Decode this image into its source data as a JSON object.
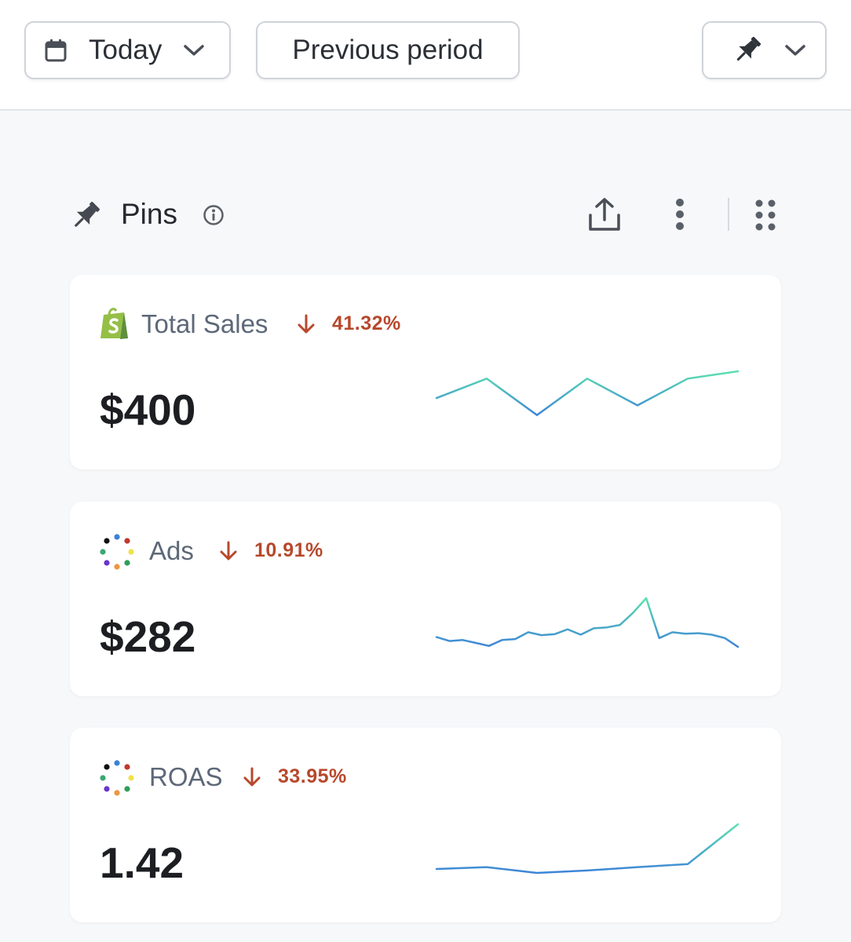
{
  "toolbar": {
    "date_range_label": "Today",
    "compare_label": "Previous period"
  },
  "section": {
    "title": "Pins"
  },
  "colors": {
    "negative_change": "#b7482c",
    "sparkline_start": "#3d84d8",
    "sparkline_end": "#5de0b0",
    "shopify_green": "#95bf47"
  },
  "icons": {
    "date": "calendar-icon",
    "dropdown": "chevron-down-icon",
    "pin": "pin-icon",
    "info": "info-icon",
    "share": "share-icon",
    "more": "more-vertical-icon",
    "drag": "drag-handle-icon",
    "change_down": "arrow-down-icon"
  },
  "cards": [
    {
      "name": "Total Sales",
      "source_logo": "shopify-logo",
      "change": "41.32%",
      "change_direction": "down",
      "value": "$400",
      "sparkline": [
        0.45,
        0.85,
        0.1,
        0.85,
        0.3,
        0.85,
        1.0
      ]
    },
    {
      "name": "Ads",
      "source_logo": "multicolor-dots-logo",
      "change": "10.91%",
      "change_direction": "down",
      "value": "$282",
      "sparkline": [
        0.2,
        0.12,
        0.14,
        0.08,
        0.02,
        0.14,
        0.16,
        0.3,
        0.24,
        0.26,
        0.36,
        0.25,
        0.38,
        0.4,
        0.45,
        0.7,
        1.0,
        0.18,
        0.3,
        0.27,
        0.28,
        0.25,
        0.18,
        0.0
      ]
    },
    {
      "name": "ROAS",
      "source_logo": "multicolor-dots-logo",
      "change": "33.95%",
      "change_direction": "down",
      "value": "1.42",
      "sparkline": [
        0.08,
        0.12,
        0.0,
        0.05,
        0.12,
        0.18,
        1.0
      ]
    }
  ]
}
